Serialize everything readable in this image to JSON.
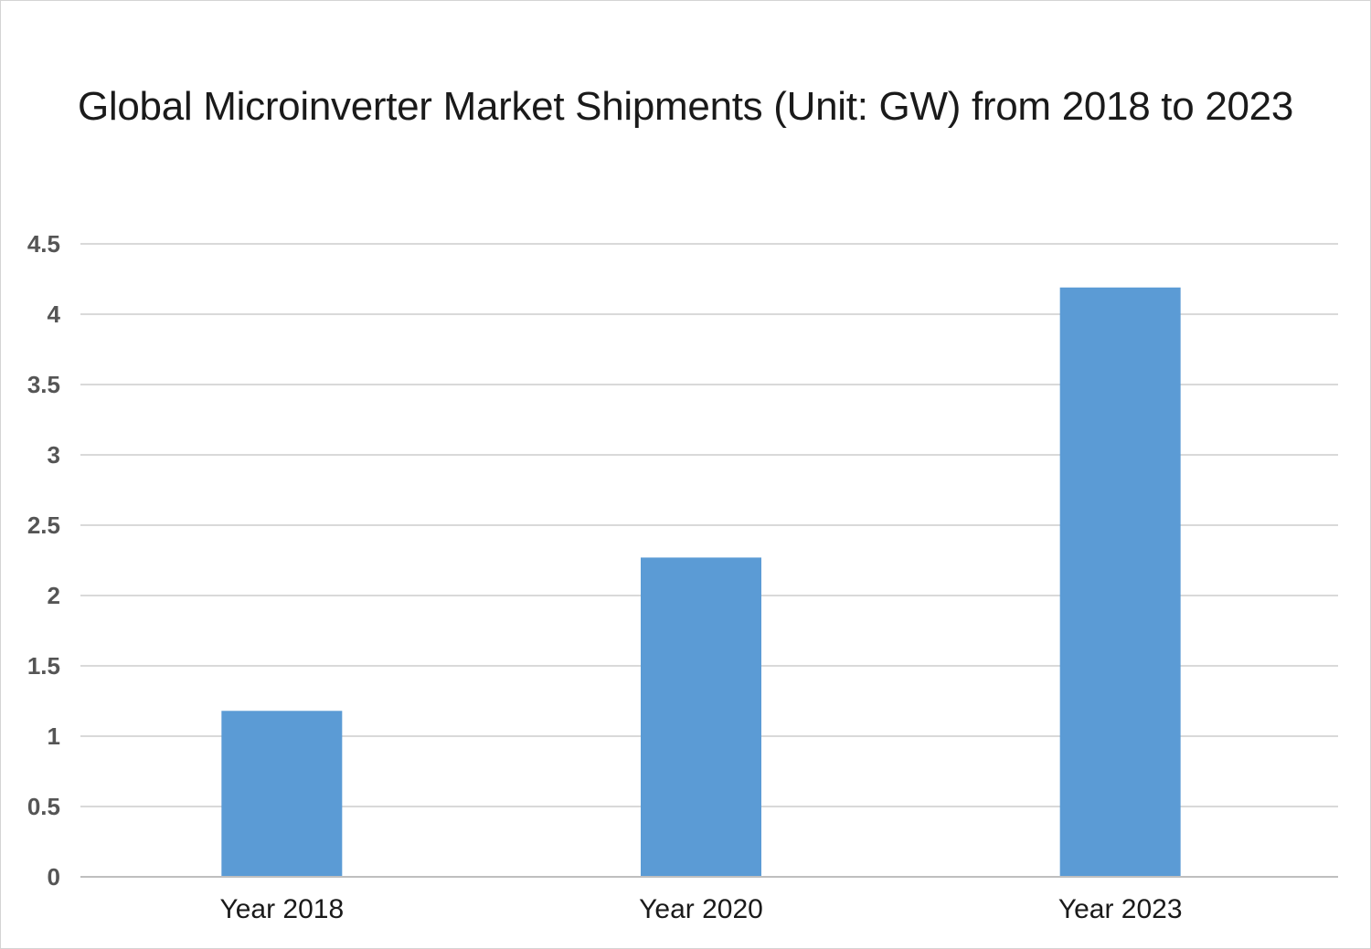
{
  "chart_data": {
    "type": "bar",
    "title": "Global Microinverter Market Shipments (Unit: GW) from 2018 to 2023",
    "categories": [
      "Year 2018",
      "Year 2020",
      "Year 2023"
    ],
    "values": [
      1.18,
      2.27,
      4.19
    ],
    "ylim": [
      0,
      4.5
    ],
    "yticks": [
      "0",
      "0.5",
      "1",
      "1.5",
      "2",
      "2.5",
      "3",
      "3.5",
      "4",
      "4.5"
    ],
    "ytick_values": [
      0,
      0.5,
      1,
      1.5,
      2,
      2.5,
      3,
      3.5,
      4,
      4.5
    ],
    "grid": true,
    "legend": "none",
    "colors": {
      "bar": "#5b9bd5",
      "grid": "#d9d9d9",
      "axis": "#bfbfbf"
    }
  }
}
